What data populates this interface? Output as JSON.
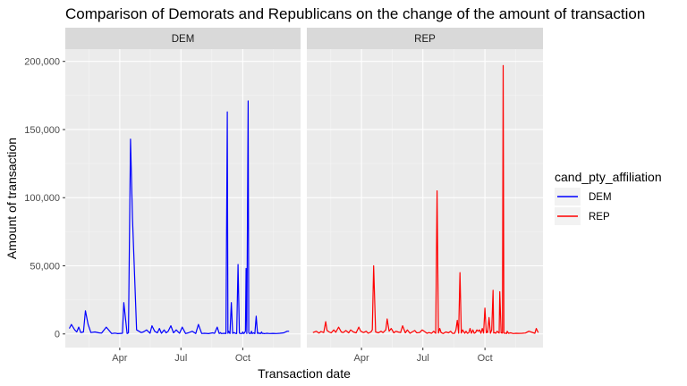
{
  "chart_data": {
    "type": "line",
    "title": "Comparison of Demorats and Republicans on the change of the amount of transaction",
    "xlabel": "Transaction date",
    "ylabel": "Amount of transaction",
    "facets": [
      "DEM",
      "REP"
    ],
    "x_ticks": [
      "Apr",
      "Jul",
      "Oct"
    ],
    "x_tick_dates": [
      "2020-04-01",
      "2020-07-01",
      "2020-10-01"
    ],
    "xlim": [
      "2020-01-11",
      "2020-12-26"
    ],
    "y_ticks": [
      0,
      50000,
      100000,
      150000,
      200000
    ],
    "y_tick_labels": [
      "0",
      "50,000",
      "100,000",
      "150,000",
      "200,000"
    ],
    "ylim": [
      -10000,
      209000
    ],
    "grid": true,
    "legend": {
      "title": "cand_pty_affiliation",
      "position": "right"
    },
    "series": [
      {
        "name": "DEM",
        "color": "#0000ff",
        "x": [
          "2020-01-17",
          "2020-01-20",
          "2020-01-25",
          "2020-01-28",
          "2020-01-31",
          "2020-02-03",
          "2020-02-07",
          "2020-02-10",
          "2020-02-14",
          "2020-02-18",
          "2020-02-24",
          "2020-03-01",
          "2020-03-05",
          "2020-03-12",
          "2020-03-20",
          "2020-03-25",
          "2020-03-29",
          "2020-04-05",
          "2020-04-07",
          "2020-04-12",
          "2020-04-14",
          "2020-04-17",
          "2020-04-20",
          "2020-04-26",
          "2020-05-03",
          "2020-05-06",
          "2020-05-11",
          "2020-05-16",
          "2020-05-19",
          "2020-05-23",
          "2020-05-27",
          "2020-05-30",
          "2020-06-02",
          "2020-06-06",
          "2020-06-09",
          "2020-06-12",
          "2020-06-16",
          "2020-06-20",
          "2020-06-24",
          "2020-06-29",
          "2020-07-03",
          "2020-07-08",
          "2020-07-12",
          "2020-07-18",
          "2020-07-23",
          "2020-07-27",
          "2020-08-01",
          "2020-08-05",
          "2020-08-11",
          "2020-08-17",
          "2020-08-20",
          "2020-08-24",
          "2020-08-27",
          "2020-08-29",
          "2020-08-30",
          "2020-09-02",
          "2020-09-04",
          "2020-09-06",
          "2020-09-08",
          "2020-09-09",
          "2020-09-10",
          "2020-09-12",
          "2020-09-14",
          "2020-09-16",
          "2020-09-18",
          "2020-09-20",
          "2020-09-22",
          "2020-09-24",
          "2020-09-26",
          "2020-09-28",
          "2020-09-30",
          "2020-10-01",
          "2020-10-02",
          "2020-10-03",
          "2020-10-05",
          "2020-10-06",
          "2020-10-07",
          "2020-10-09",
          "2020-10-10",
          "2020-10-11",
          "2020-10-13",
          "2020-10-14",
          "2020-10-15",
          "2020-10-17",
          "2020-10-19",
          "2020-10-21",
          "2020-10-23",
          "2020-10-24",
          "2020-10-25",
          "2020-10-26",
          "2020-10-27",
          "2020-10-28",
          "2020-10-29",
          "2020-10-30",
          "2020-10-31",
          "2020-11-01",
          "2020-11-02",
          "2020-11-03",
          "2020-11-06",
          "2020-11-10",
          "2020-11-15",
          "2020-11-20",
          "2020-11-25",
          "2020-12-01",
          "2020-12-06",
          "2020-12-09"
        ],
        "y": [
          4000,
          7000,
          3000,
          1500,
          5000,
          1000,
          1500,
          17000,
          7000,
          1000,
          1500,
          800,
          600,
          5000,
          300,
          600,
          200,
          500,
          23000,
          300,
          800,
          143000,
          85000,
          3000,
          1000,
          1500,
          3000,
          500,
          6000,
          2000,
          800,
          4000,
          500,
          3000,
          800,
          2000,
          6000,
          800,
          3000,
          500,
          5000,
          300,
          800,
          2000,
          300,
          7000,
          300,
          500,
          200,
          800,
          400,
          5000,
          300,
          1000,
          300,
          400,
          500,
          300,
          163000,
          500,
          2000,
          300,
          23000,
          400,
          1000,
          500,
          300,
          51000,
          600,
          300,
          400,
          1500,
          300,
          500,
          2000,
          48000,
          300,
          171000,
          1000,
          300,
          500,
          2000,
          300,
          800,
          200,
          13000,
          300,
          1000,
          400,
          300,
          700,
          300,
          1500,
          500,
          300,
          400,
          200,
          300,
          500,
          300,
          400,
          300,
          500,
          800,
          2000,
          2000
        ]
      },
      {
        "name": "REP",
        "color": "#ff0000",
        "x": [
          "2020-01-20",
          "2020-01-25",
          "2020-01-29",
          "2020-02-01",
          "2020-02-05",
          "2020-02-08",
          "2020-02-10",
          "2020-02-13",
          "2020-02-16",
          "2020-02-20",
          "2020-02-23",
          "2020-02-27",
          "2020-03-02",
          "2020-03-05",
          "2020-03-09",
          "2020-03-13",
          "2020-03-16",
          "2020-03-20",
          "2020-03-24",
          "2020-03-28",
          "2020-03-31",
          "2020-04-04",
          "2020-04-08",
          "2020-04-11",
          "2020-04-15",
          "2020-04-17",
          "2020-04-19",
          "2020-04-22",
          "2020-04-26",
          "2020-04-30",
          "2020-05-03",
          "2020-05-07",
          "2020-05-09",
          "2020-05-12",
          "2020-05-15",
          "2020-05-19",
          "2020-05-22",
          "2020-05-25",
          "2020-05-29",
          "2020-06-01",
          "2020-06-05",
          "2020-06-08",
          "2020-06-12",
          "2020-06-15",
          "2020-06-19",
          "2020-06-22",
          "2020-06-26",
          "2020-06-30",
          "2020-07-03",
          "2020-07-07",
          "2020-07-10",
          "2020-07-14",
          "2020-07-17",
          "2020-07-20",
          "2020-07-22",
          "2020-07-24",
          "2020-07-26",
          "2020-07-28",
          "2020-07-31",
          "2020-08-04",
          "2020-08-08",
          "2020-08-11",
          "2020-08-14",
          "2020-08-17",
          "2020-08-19",
          "2020-08-21",
          "2020-08-23",
          "2020-08-25",
          "2020-08-27",
          "2020-08-29",
          "2020-09-01",
          "2020-09-03",
          "2020-09-05",
          "2020-09-07",
          "2020-09-09",
          "2020-09-11",
          "2020-09-13",
          "2020-09-15",
          "2020-09-17",
          "2020-09-19",
          "2020-09-21",
          "2020-09-23",
          "2020-09-25",
          "2020-09-27",
          "2020-09-29",
          "2020-10-01",
          "2020-10-03",
          "2020-10-04",
          "2020-10-05",
          "2020-10-07",
          "2020-10-09",
          "2020-10-11",
          "2020-10-13",
          "2020-10-14",
          "2020-10-15",
          "2020-10-17",
          "2020-10-19",
          "2020-10-21",
          "2020-10-22",
          "2020-10-23",
          "2020-10-25",
          "2020-10-27",
          "2020-10-28",
          "2020-10-29",
          "2020-10-30",
          "2020-11-01",
          "2020-11-02",
          "2020-11-03",
          "2020-11-05",
          "2020-11-08",
          "2020-11-12",
          "2020-11-16",
          "2020-11-20",
          "2020-11-25",
          "2020-11-30",
          "2020-12-05",
          "2020-12-14",
          "2020-12-16",
          "2020-12-19"
        ],
        "y": [
          1000,
          2000,
          600,
          1800,
          1000,
          9000,
          2500,
          1500,
          800,
          3000,
          1200,
          5000,
          1500,
          1000,
          2500,
          800,
          3000,
          1500,
          800,
          5000,
          2000,
          1000,
          2000,
          500,
          1500,
          3000,
          50000,
          1500,
          800,
          2000,
          1000,
          3000,
          11000,
          2000,
          4000,
          800,
          2000,
          1500,
          1000,
          6000,
          800,
          3000,
          500,
          1500,
          2500,
          800,
          1000,
          3000,
          2000,
          500,
          1000,
          500,
          2000,
          400,
          105000,
          600,
          4000,
          1000,
          300,
          1500,
          800,
          2000,
          400,
          500,
          3000,
          10000,
          500,
          45000,
          600,
          3000,
          500,
          2000,
          400,
          800,
          4000,
          500,
          3000,
          500,
          1000,
          3000,
          2000,
          3000,
          500,
          4000,
          600,
          19000,
          800,
          2000,
          1000,
          12000,
          500,
          3000,
          32000,
          600,
          1000,
          500,
          2000,
          1000,
          600,
          31000,
          800,
          600,
          197000,
          1000,
          400,
          600,
          300,
          2000,
          500,
          800,
          300,
          500,
          400,
          500,
          700,
          2000,
          500,
          4000,
          1000
        ]
      }
    ]
  }
}
